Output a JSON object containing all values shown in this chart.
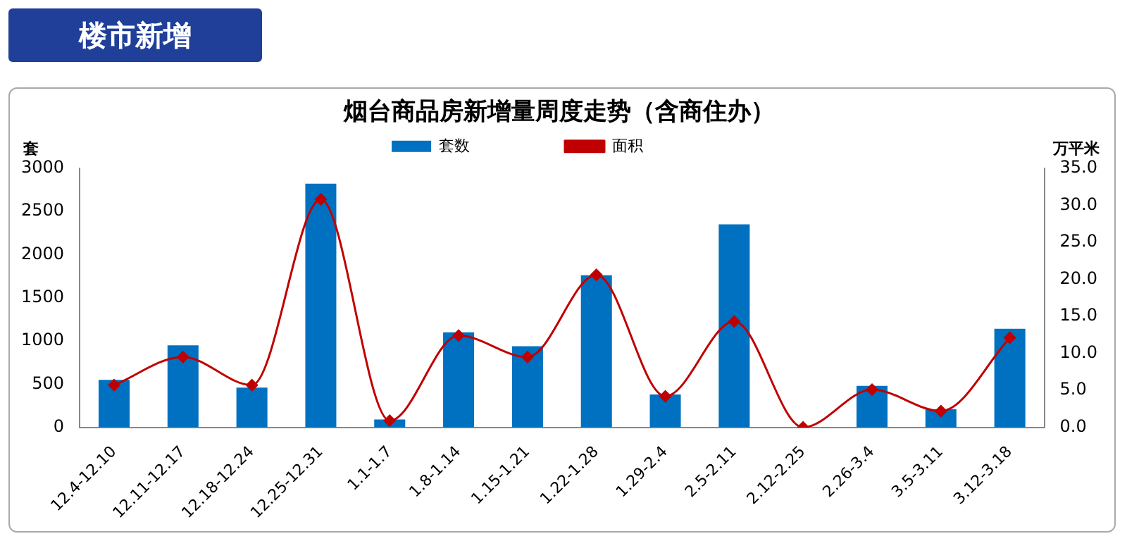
{
  "chart_data": {
    "type": "bar",
    "title": "烟台商品房新增量周度走势（含商住办）",
    "ylabel": "套",
    "y2label": "万平米",
    "annotations": [
      "楼市新增"
    ],
    "categories": [
      "12.4-12.10",
      "12.11-12.17",
      "12.18-12.24",
      "12.25-12.31",
      "1.1-1.7",
      "1.8-1.14",
      "1.15-1.21",
      "1.22-1.28",
      "1.29-2.4",
      "2.5-2.11",
      "2.12-2.25",
      "2.26-3.4",
      "3.5-3.11",
      "3.12-3.18"
    ],
    "series": [
      {
        "name": "套数",
        "color": "#0070c0",
        "values": [
          550,
          950,
          460,
          2820,
          90,
          1100,
          940,
          1760,
          380,
          2350,
          0,
          480,
          210,
          1140
        ]
      },
      {
        "name": "面积",
        "type": "line",
        "axis": "y2",
        "color": "#c00000",
        "marker": "diamond",
        "values": [
          5.7,
          9.5,
          5.7,
          30.8,
          0.9,
          12.4,
          9.5,
          20.6,
          4.2,
          14.3,
          0,
          5.1,
          2.2,
          12.1
        ]
      }
    ],
    "ylim": [
      0,
      3000
    ],
    "yticks": [
      0,
      500,
      1000,
      1500,
      2000,
      2500,
      3000
    ],
    "y2lim": [
      0,
      35
    ],
    "y2ticks": [
      {
        "value": 0,
        "label": "0.0"
      },
      {
        "value": 5,
        "label": "5.0"
      },
      {
        "value": 10,
        "label": "10.0"
      },
      {
        "value": 15,
        "label": "15.0"
      },
      {
        "value": 20,
        "label": "20.0"
      },
      {
        "value": 25,
        "label": "25.0"
      },
      {
        "value": 30,
        "label": "30.0"
      },
      {
        "value": 35,
        "label": "35.0"
      }
    ],
    "grid": false,
    "legend": "top"
  }
}
